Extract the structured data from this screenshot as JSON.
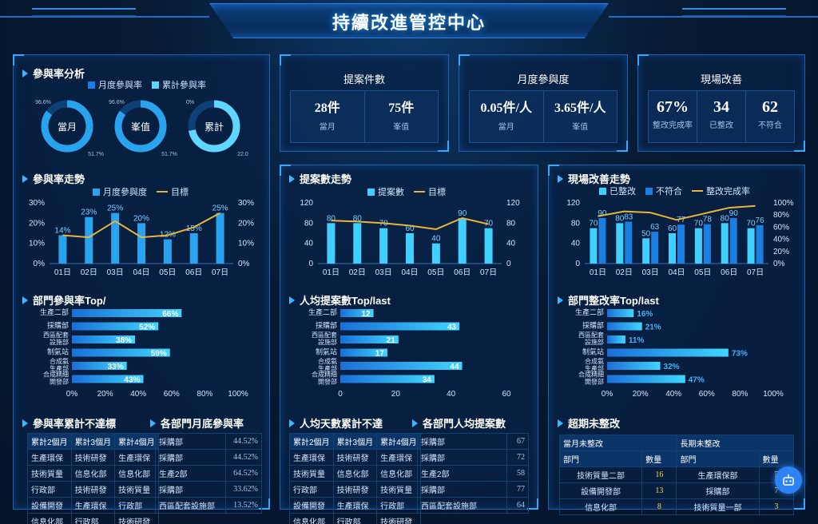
{
  "header": {
    "title": "持續改進管控中心"
  },
  "participation": {
    "title": "參與率分析",
    "legend": [
      "月度參與率",
      "累計參與率"
    ],
    "donuts": [
      {
        "name": "當月",
        "top_value": "96.6%",
        "bottom_value": "51.7%",
        "fraction": 0.85
      },
      {
        "name": "峯值",
        "top_value": "96.6%",
        "bottom_value": "51.7%",
        "fraction": 0.85
      },
      {
        "name": "累計",
        "top_value": "0%",
        "bottom_value": "22.0",
        "fraction": 0.72
      }
    ]
  },
  "kpis": [
    {
      "title": "提案件數",
      "cells": [
        {
          "value": "28件",
          "label": "當月"
        },
        {
          "value": "75件",
          "label": "峯值"
        }
      ]
    },
    {
      "title": "月度參與度",
      "cells": [
        {
          "value": "0.05件/人",
          "label": "當月"
        },
        {
          "value": "3.65件/人",
          "label": "峯值"
        }
      ]
    },
    {
      "title": "現場改善",
      "cells": [
        {
          "value": "67%",
          "label": "整改完成率"
        },
        {
          "value": "34",
          "label": "已整改"
        },
        {
          "value": "62",
          "label": "不符合"
        }
      ]
    }
  ],
  "colors": {
    "bar": "#29a3ee",
    "bar2": "#1a7fe0",
    "target": "#e7b53a",
    "accent": "#3fb4ff"
  },
  "chart_data": [
    {
      "id": "participation_trend",
      "type": "bar",
      "title": "參與率走勢",
      "categories": [
        "01日",
        "02日",
        "03日",
        "04日",
        "05日",
        "06日",
        "07日"
      ],
      "series": [
        {
          "name": "月度參與度",
          "values": [
            14,
            23,
            25,
            20,
            12,
            15,
            25
          ],
          "labels": [
            "14%",
            "23%",
            "25%",
            "20%",
            "12%",
            "15%",
            "25%"
          ]
        },
        {
          "name": "目標",
          "type": "line",
          "values": [
            14,
            13,
            21,
            13,
            14,
            18,
            25
          ]
        }
      ],
      "yticks": [
        "0%",
        "10%",
        "20%",
        "30%"
      ],
      "yticks_right": [
        "0%",
        "10%",
        "20%",
        "30%"
      ],
      "ylim": [
        0,
        30
      ]
    },
    {
      "id": "proposal_trend",
      "type": "bar",
      "title": "提案數走勢",
      "categories": [
        "01日",
        "02日",
        "03日",
        "04日",
        "05日",
        "06日",
        "07日"
      ],
      "series": [
        {
          "name": "提案數",
          "values": [
            80,
            80,
            70,
            60,
            40,
            90,
            70
          ]
        },
        {
          "name": "目標",
          "type": "line",
          "values": [
            85,
            83,
            80,
            75,
            68,
            90,
            78
          ]
        }
      ],
      "yticks": [
        "0",
        "40",
        "80",
        "120"
      ],
      "yticks_right": [
        "0",
        "40",
        "80",
        "120"
      ],
      "ylim": [
        0,
        120
      ]
    },
    {
      "id": "site_trend",
      "type": "bar",
      "title": "現場改善走勢",
      "categories": [
        "01日",
        "02日",
        "03日",
        "04日",
        "05日",
        "06日",
        "07日"
      ],
      "series": [
        {
          "name": "已整改",
          "values": [
            70,
            80,
            50,
            60,
            70,
            80,
            70
          ]
        },
        {
          "name": "不符合",
          "values": [
            90,
            83,
            63,
            77,
            78,
            90,
            76
          ]
        },
        {
          "name": "整改完成率",
          "type": "line",
          "values": [
            78,
            86,
            84,
            72,
            82,
            92,
            95
          ]
        }
      ],
      "yticks": [
        "0",
        "40",
        "80",
        "120"
      ],
      "yticks_right": [
        "0%",
        "20%",
        "40%",
        "60%",
        "80%",
        "100%"
      ],
      "ylim": [
        0,
        120
      ]
    },
    {
      "id": "dept_participation",
      "type": "bar",
      "orientation": "horizontal",
      "title": "部門參與率Top/",
      "categories": [
        "生產二部",
        "採購部",
        "西區配套設施部",
        "制氣站",
        "合成氨生產部",
        "合成精細開發部"
      ],
      "values": [
        66,
        52,
        38,
        59,
        33,
        43
      ],
      "labels": [
        "66%",
        "52%",
        "38%",
        "59%",
        "33%",
        "43%"
      ],
      "xticks": [
        "0%",
        "20%",
        "40%",
        "60%",
        "80%",
        "100%"
      ],
      "xlim": [
        0,
        100
      ]
    },
    {
      "id": "per_capita_proposals",
      "type": "bar",
      "orientation": "horizontal",
      "title": "人均提案數Top/last",
      "categories": [
        "生產二部",
        "採購部",
        "西區配套設施部",
        "制氣站",
        "合成氨生產部",
        "合成精細開發部"
      ],
      "values": [
        12,
        43,
        21,
        17,
        44,
        34
      ],
      "labels": [
        "12",
        "43",
        "21",
        "17",
        "44",
        "34"
      ],
      "xticks": [
        "0",
        "20",
        "40",
        "60"
      ],
      "xlim": [
        0,
        60
      ]
    },
    {
      "id": "dept_rectification",
      "type": "bar",
      "orientation": "horizontal",
      "title": "部門整改率Top/last",
      "categories": [
        "生產二部",
        "採購部",
        "西區配套設施部",
        "制氣站",
        "合成氨生產部",
        "合成精細開發部"
      ],
      "values": [
        16,
        21,
        11,
        73,
        32,
        47
      ],
      "labels": [
        "16%",
        "21%",
        "11%",
        "73%",
        "32%",
        "47%"
      ],
      "xticks": [
        "0%",
        "20%",
        "40%",
        "60%",
        "80%",
        "100%"
      ],
      "xlim": [
        0,
        100
      ]
    }
  ],
  "tables": {
    "cum_not_met": {
      "title": "參與率累計不達標",
      "headers": [
        "累計2個月",
        "累計3個月",
        "累計4個月"
      ],
      "rows": [
        [
          "生產環保",
          "技術研發",
          "生產環保"
        ],
        [
          "技術質量",
          "信息化部",
          "信息化部"
        ],
        [
          "行政部",
          "技術研發",
          "技術質量"
        ],
        [
          "設備開發",
          "生產環保",
          "行政部"
        ],
        [
          "信息化部",
          "行政部",
          "技術研發"
        ]
      ]
    },
    "dept_month_end": {
      "title": "各部門月底參與率",
      "rows": [
        [
          "採購部",
          "44.52%"
        ],
        [
          "採購部",
          "44.52%"
        ],
        [
          "生產2部",
          "64.52%"
        ],
        [
          "採購部",
          "33.62%"
        ],
        [
          "西區配套設施部",
          "13.52%"
        ]
      ]
    },
    "per_capita_days": {
      "title": "人均天數累計不達",
      "headers": [
        "累計2個月",
        "累計3個月",
        "累計4個月"
      ],
      "rows": [
        [
          "生產環保",
          "技術研發",
          "生產環保"
        ],
        [
          "技術質量",
          "信息化部",
          "信息化部"
        ],
        [
          "行政部",
          "技術研發",
          "技術質量"
        ],
        [
          "設備開發",
          "生產環保",
          "行政部"
        ],
        [
          "信息化部",
          "行政部",
          "技術研發"
        ]
      ]
    },
    "dept_avg_proposals": {
      "title": "各部門人均提案數",
      "rows": [
        [
          "採購部",
          "67"
        ],
        [
          "採購部",
          "72"
        ],
        [
          "生產2部",
          "58"
        ],
        [
          "採購部",
          "77"
        ],
        [
          "西區配套設施部",
          "64"
        ]
      ]
    },
    "overdue": {
      "title": "超期未整改",
      "group_headers": [
        "當月未整改",
        "長期未整改"
      ],
      "headers": [
        "部門",
        "數量",
        "部門",
        "數量"
      ],
      "rows": [
        [
          "技術質量二部",
          "16",
          "生產環保部",
          "5"
        ],
        [
          "設備開發部",
          "13",
          "採購部",
          "7"
        ],
        [
          "信息化部",
          "8",
          "技術質量一部",
          "3"
        ]
      ]
    }
  }
}
